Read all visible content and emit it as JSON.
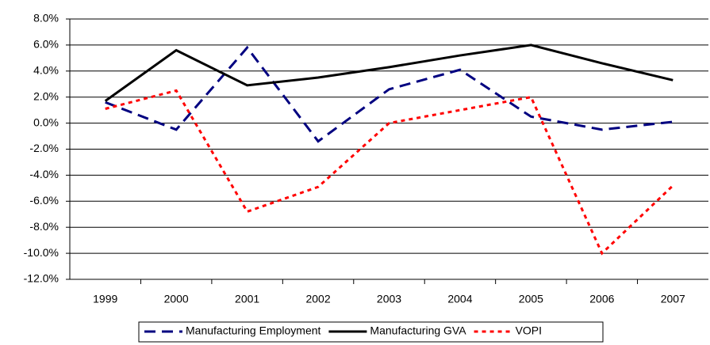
{
  "chart_data": {
    "type": "line",
    "categories": [
      "1999",
      "2000",
      "2001",
      "2002",
      "2003",
      "2004",
      "2005",
      "2006",
      "2007"
    ],
    "series": [
      {
        "name": "Manufacturing Employment",
        "color": "#000080",
        "dash": "dashed",
        "values": [
          1.6,
          -0.5,
          5.8,
          -1.4,
          2.6,
          4.1,
          0.5,
          -0.5,
          0.1
        ]
      },
      {
        "name": "Manufacturing GVA",
        "color": "#000000",
        "dash": "solid",
        "values": [
          1.7,
          5.6,
          2.9,
          3.5,
          4.3,
          5.2,
          6.0,
          4.6,
          3.3
        ]
      },
      {
        "name": "VOPI",
        "color": "#ff0000",
        "dash": "dotted",
        "values": [
          1.1,
          2.5,
          -6.8,
          -4.9,
          0.0,
          1.0,
          2.0,
          -10.0,
          -4.8
        ]
      }
    ],
    "ylim": [
      -12,
      8
    ],
    "yticks": [
      {
        "value": -12,
        "label": "-12.0%"
      },
      {
        "value": -10,
        "label": "-10.0%"
      },
      {
        "value": -8,
        "label": "-8.0%"
      },
      {
        "value": -6,
        "label": "-6.0%"
      },
      {
        "value": -4,
        "label": "-4.0%"
      },
      {
        "value": -2,
        "label": "-2.0%"
      },
      {
        "value": 0,
        "label": "0.0%"
      },
      {
        "value": 2,
        "label": "2.0%"
      },
      {
        "value": 4,
        "label": "4.0%"
      },
      {
        "value": 6,
        "label": "6.0%"
      },
      {
        "value": 8,
        "label": "8.0%"
      }
    ],
    "grid": true,
    "legend": "bottom"
  }
}
